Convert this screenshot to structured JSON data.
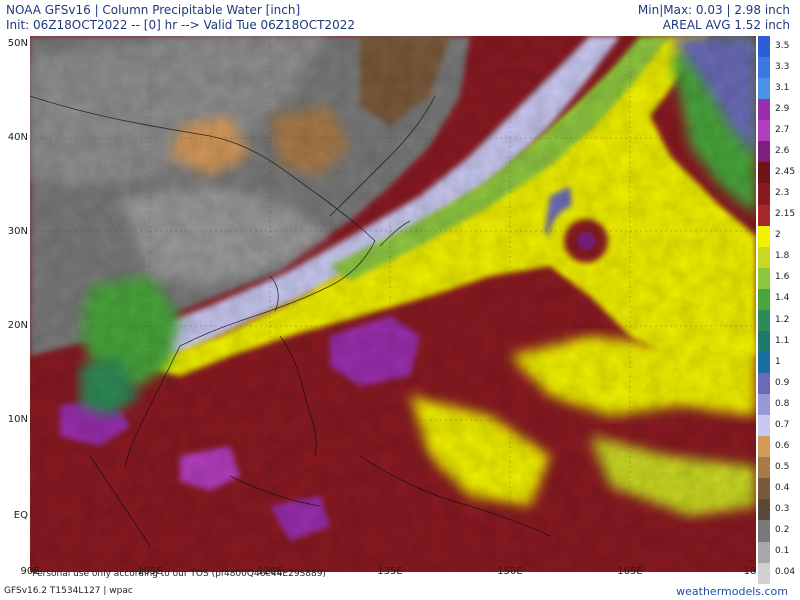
{
  "header": {
    "title": "NOAA GFSv16 | Column Precipitable Water [inch]",
    "init_line": "Init: 06Z18OCT2022 -- [0] hr --> Valid Tue 06Z18OCT2022",
    "minmax": "Min|Max: 0.03 | 2.98 inch",
    "areal_avg": "AREAL AVG 1.52 inch"
  },
  "map": {
    "lat_labels": [
      "50N",
      "40N",
      "30N",
      "20N",
      "10N",
      "EQ"
    ],
    "lon_labels": [
      "90E",
      "105E",
      "120E",
      "135E",
      "150E",
      "165E",
      "18"
    ]
  },
  "footer": {
    "tos": "Personal use only according to our TOS (pf4800Q46e44E29S889)",
    "version": "GFSv16.2 T1534L127 | wpac",
    "brand": "weathermodels.com"
  },
  "colorbar": {
    "labels": [
      "3.5",
      "3.3",
      "3.1",
      "2.9",
      "2.7",
      "2.6",
      "2.45",
      "2.3",
      "2.15",
      "2",
      "1.8",
      "1.6",
      "1.4",
      "1.2",
      "1.1",
      "1",
      "0.9",
      "0.8",
      "0.7",
      "0.6",
      "0.5",
      "0.4",
      "0.3",
      "0.2",
      "0.1",
      "0.04"
    ],
    "colors": [
      "#2c5fd6",
      "#3a78e0",
      "#4a92e6",
      "#9a2fae",
      "#b23ebe",
      "#7e1f7e",
      "#6e1318",
      "#8a1a22",
      "#a52a2a",
      "#f0f000",
      "#c9d820",
      "#8ec63f",
      "#4aa63a",
      "#2e8b57",
      "#1e7a6e",
      "#1a6fa0",
      "#6a6ab8",
      "#9898d8",
      "#c8c8f0",
      "#d49a5a",
      "#a87a4a",
      "#7a5a3a",
      "#5a4a3a",
      "#7a7a7a",
      "#a8a8a8",
      "#d0d0d0"
    ]
  }
}
